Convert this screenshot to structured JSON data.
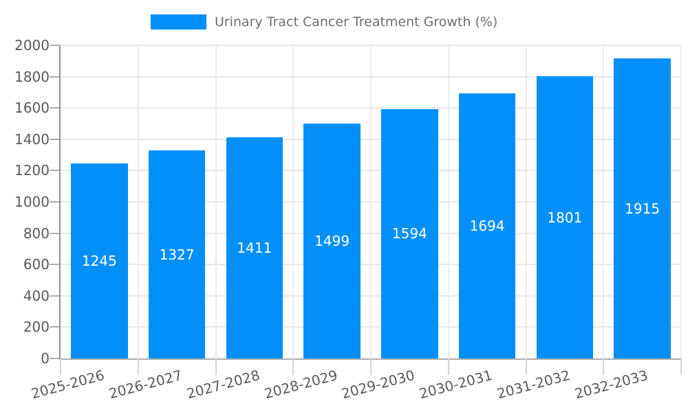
{
  "chart_data": {
    "type": "bar",
    "title": "Urinary Tract Cancer Treatment Growth (%)",
    "categories": [
      "2025-2026",
      "2026-2027",
      "2027-2028",
      "2028-2029",
      "2029-2030",
      "2030-2031",
      "2031-2032",
      "2032-2033"
    ],
    "values": [
      1245,
      1327,
      1411,
      1499,
      1594,
      1694,
      1801,
      1915
    ],
    "series": [
      {
        "name": "Urinary Tract Cancer Treatment Growth (%)",
        "values": [
          1245,
          1327,
          1411,
          1499,
          1594,
          1694,
          1801,
          1915
        ]
      }
    ],
    "xlabel": "",
    "ylabel": "",
    "ylim": [
      0,
      2000
    ],
    "yticks": [
      0,
      200,
      400,
      600,
      800,
      1000,
      1200,
      1400,
      1600,
      1800,
      2000
    ],
    "grid": true,
    "legend_position": "top-center",
    "bar_value_labels": "centered-white",
    "colors": {
      "bar": "#0290F8",
      "bar_label": "#FFFFFF",
      "axis_text": "#595959",
      "legend_text": "#6E6E6E",
      "gridline": "#E7E7E7",
      "gridline_vertical": "#ECECEC",
      "tick": "#ABABAB",
      "xtick": "#D2D2D2",
      "axis_line_left": "#8F8F8F",
      "axis_line_bottom": "#ABABAB",
      "background": "#FFFFFF"
    }
  }
}
